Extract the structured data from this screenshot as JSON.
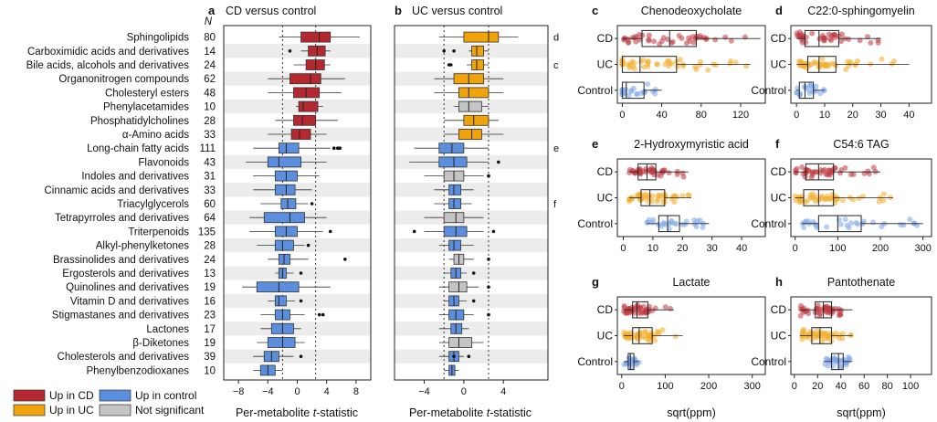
{
  "chart_data": {
    "type": "boxplot",
    "n_header": "N",
    "categories": [
      {
        "name": "Sphingolipids",
        "n": 80
      },
      {
        "name": "Carboximidic acids and derivatives",
        "n": 14
      },
      {
        "name": "Bile acids, alcohols and derivatives",
        "n": 24
      },
      {
        "name": "Organonitrogen compounds",
        "n": 62
      },
      {
        "name": "Cholesteryl esters",
        "n": 48
      },
      {
        "name": "Phenylacetamides",
        "n": 10
      },
      {
        "name": "Phosphatidylcholines",
        "n": 28
      },
      {
        "name": "α-Amino acids",
        "n": 33
      },
      {
        "name": "Long-chain fatty acids",
        "n": 111
      },
      {
        "name": "Flavonoids",
        "n": 43
      },
      {
        "name": "Indoles and derivatives",
        "n": 31
      },
      {
        "name": "Cinnamic acids and derivatives",
        "n": 33
      },
      {
        "name": "Triacylglycerols",
        "n": 60
      },
      {
        "name": "Tetrapyrroles and derivatives",
        "n": 64
      },
      {
        "name": "Triterpenoids",
        "n": 135
      },
      {
        "name": "Alkyl-phenylketones",
        "n": 28
      },
      {
        "name": "Brassinolides and derivatives",
        "n": 24
      },
      {
        "name": "Ergosterols and derivatives",
        "n": 13
      },
      {
        "name": "Quinolines and derivatives",
        "n": 19
      },
      {
        "name": "Vitamin D and derivatives",
        "n": 16
      },
      {
        "name": "Stigmastanes and derivatives",
        "n": 23
      },
      {
        "name": "Lactones",
        "n": 17
      },
      {
        "name": "β-Diketones",
        "n": 19
      },
      {
        "name": "Cholesterols and derivatives",
        "n": 39
      },
      {
        "name": "Phenylbenzodioxanes",
        "n": 10
      }
    ],
    "legend": [
      {
        "label": "Up in CD",
        "color": "#b5282f"
      },
      {
        "label": "Up in control",
        "color": "#5b8fde"
      },
      {
        "label": "Up in UC",
        "color": "#f0a30a"
      },
      {
        "label": "Not significant",
        "color": "#c4c4c4"
      }
    ],
    "colors": {
      "CD": "#b5282f",
      "UC": "#f0a30a",
      "control": "#5b8fde",
      "ns": "#c4c4c4",
      "CD_pts": "#c0393f",
      "UC_pts": "#f2ad2b",
      "ctrl_pts": "#7ba6ea"
    },
    "panel_a": {
      "label": "a",
      "title": "CD versus control",
      "xlabel_prefix": "Per-metabolite ",
      "xlabel_italic": "t",
      "xlabel_suffix": "-statistic",
      "xlim": [
        -10,
        10
      ],
      "xticks": [
        -8,
        -4,
        0,
        4,
        8
      ],
      "vlines": [
        -2,
        2.5
      ],
      "boxes": [
        {
          "q1": 0.5,
          "med": 3.0,
          "q3": 4.5,
          "lo": -2.5,
          "hi": 8.5,
          "cls": "CD",
          "out": []
        },
        {
          "q1": 1.5,
          "med": 2.7,
          "q3": 3.8,
          "lo": 0.5,
          "hi": 4.5,
          "cls": "CD",
          "out": [
            -1.0
          ]
        },
        {
          "q1": 1.2,
          "med": 2.5,
          "q3": 3.7,
          "lo": -0.5,
          "hi": 4.5,
          "cls": "CD",
          "out": []
        },
        {
          "q1": -1.0,
          "med": 1.8,
          "q3": 3.2,
          "lo": -4.0,
          "hi": 6.5,
          "cls": "CD",
          "out": []
        },
        {
          "q1": -0.5,
          "med": 1.2,
          "q3": 3.0,
          "lo": -4.0,
          "hi": 6.0,
          "cls": "CD",
          "out": []
        },
        {
          "q1": 0.2,
          "med": 0.8,
          "q3": 2.8,
          "lo": -0.2,
          "hi": 3.5,
          "cls": "CD",
          "out": []
        },
        {
          "q1": -0.5,
          "med": 0.7,
          "q3": 2.5,
          "lo": -3.0,
          "hi": 5.5,
          "cls": "CD",
          "out": []
        },
        {
          "q1": -0.8,
          "med": 0.3,
          "q3": 1.8,
          "lo": -4.0,
          "hi": 4.0,
          "cls": "CD",
          "out": []
        },
        {
          "q1": -2.5,
          "med": -1.5,
          "q3": 0.2,
          "lo": -6.0,
          "hi": 4.5,
          "cls": "control",
          "out": [
            5.0,
            5.5,
            5.8
          ]
        },
        {
          "q1": -4.0,
          "med": -2.5,
          "q3": 0.5,
          "lo": -7.0,
          "hi": 4.0,
          "cls": "control",
          "out": []
        },
        {
          "q1": -3.0,
          "med": -1.5,
          "q3": 0.0,
          "lo": -6.0,
          "hi": 3.0,
          "cls": "control",
          "out": []
        },
        {
          "q1": -3.0,
          "med": -1.5,
          "q3": -0.3,
          "lo": -6.0,
          "hi": 2.0,
          "cls": "control",
          "out": []
        },
        {
          "q1": -2.2,
          "med": -1.3,
          "q3": -0.2,
          "lo": -5.0,
          "hi": 1.5,
          "cls": "control",
          "out": [
            2.0
          ]
        },
        {
          "q1": -4.5,
          "med": -1.0,
          "q3": 1.0,
          "lo": -6.5,
          "hi": 4.0,
          "cls": "control",
          "out": []
        },
        {
          "q1": -3.0,
          "med": -1.5,
          "q3": 0.0,
          "lo": -6.5,
          "hi": 3.5,
          "cls": "control",
          "out": [
            4.5
          ]
        },
        {
          "q1": -3.0,
          "med": -2.0,
          "q3": -0.5,
          "lo": -5.5,
          "hi": 1.0,
          "cls": "control",
          "out": [
            1.5
          ]
        },
        {
          "q1": -2.5,
          "med": -1.8,
          "q3": -1.0,
          "lo": -4.0,
          "hi": 1.5,
          "cls": "control",
          "out": [
            6.5
          ]
        },
        {
          "q1": -2.5,
          "med": -2.0,
          "q3": -1.5,
          "lo": -3.0,
          "hi": -0.5,
          "cls": "control",
          "out": [
            0.5
          ]
        },
        {
          "q1": -5.5,
          "med": -2.5,
          "q3": 0.2,
          "lo": -7.5,
          "hi": 4.5,
          "cls": "control",
          "out": []
        },
        {
          "q1": -3.0,
          "med": -2.5,
          "q3": -1.5,
          "lo": -4.0,
          "hi": -0.3,
          "cls": "control",
          "out": [
            0.5
          ]
        },
        {
          "q1": -3.0,
          "med": -2.0,
          "q3": -1.0,
          "lo": -5.0,
          "hi": 1.0,
          "cls": "control",
          "out": [
            3.0,
            3.5
          ]
        },
        {
          "q1": -3.5,
          "med": -2.0,
          "q3": -0.5,
          "lo": -5.0,
          "hi": 0.5,
          "cls": "control",
          "out": []
        },
        {
          "q1": -4.0,
          "med": -2.0,
          "q3": -0.3,
          "lo": -5.5,
          "hi": 1.0,
          "cls": "control",
          "out": []
        },
        {
          "q1": -4.5,
          "med": -3.5,
          "q3": -2.5,
          "lo": -6.0,
          "hi": -0.5,
          "cls": "control",
          "out": [
            0.5
          ]
        },
        {
          "q1": -5.0,
          "med": -4.0,
          "q3": -3.0,
          "lo": -6.0,
          "hi": -2.0,
          "cls": "control",
          "out": []
        }
      ]
    },
    "panel_b": {
      "label": "b",
      "title": "UC versus control",
      "xlabel_prefix": "Per-metabolite ",
      "xlabel_italic": "t",
      "xlabel_suffix": "-statistic",
      "xlim": [
        -7,
        8.5
      ],
      "xticks": [
        -4,
        0,
        4
      ],
      "vlines": [
        -2,
        2.5
      ],
      "side_labels": [
        {
          "row": 0,
          "text": "d"
        },
        {
          "row": 2,
          "text": "c"
        },
        {
          "row": 8,
          "text": "e"
        },
        {
          "row": 12,
          "text": "f"
        }
      ],
      "boxes": [
        {
          "q1": 0.0,
          "med": 2.5,
          "q3": 3.5,
          "lo": -2.5,
          "hi": 5.5,
          "cls": "UC",
          "out": []
        },
        {
          "q1": 0.8,
          "med": 1.3,
          "q3": 2.0,
          "lo": 0.5,
          "hi": 2.5,
          "cls": "UC",
          "out": [
            -2.0,
            -1.0
          ]
        },
        {
          "q1": 0.8,
          "med": 1.3,
          "q3": 2.0,
          "lo": 0.3,
          "hi": 2.5,
          "cls": "UC",
          "out": [
            -1.5,
            -1.3
          ]
        },
        {
          "q1": -1.0,
          "med": 0.5,
          "q3": 2.0,
          "lo": -3.0,
          "hi": 4.0,
          "cls": "UC",
          "out": []
        },
        {
          "q1": -0.5,
          "med": 0.5,
          "q3": 2.5,
          "lo": -3.0,
          "hi": 4.0,
          "cls": "UC",
          "out": []
        },
        {
          "q1": -0.5,
          "med": 0.5,
          "q3": 1.8,
          "lo": -1.0,
          "hi": 2.5,
          "cls": "ns",
          "out": []
        },
        {
          "q1": 0.0,
          "med": 1.0,
          "q3": 2.5,
          "lo": -2.0,
          "hi": 3.5,
          "cls": "UC",
          "out": []
        },
        {
          "q1": -0.5,
          "med": 0.8,
          "q3": 1.8,
          "lo": -2.0,
          "hi": 4.0,
          "cls": "UC",
          "out": []
        },
        {
          "q1": -2.5,
          "med": -1.2,
          "q3": 0.0,
          "lo": -5.0,
          "hi": 2.5,
          "cls": "control",
          "out": []
        },
        {
          "q1": -2.5,
          "med": -1.0,
          "q3": 0.3,
          "lo": -5.5,
          "hi": 2.5,
          "cls": "control",
          "out": [
            3.5
          ]
        },
        {
          "q1": -2.0,
          "med": -1.0,
          "q3": 0.0,
          "lo": -4.0,
          "hi": 2.0,
          "cls": "ns",
          "out": [
            2.5
          ]
        },
        {
          "q1": -1.5,
          "med": -1.0,
          "q3": -0.3,
          "lo": -3.0,
          "hi": 1.0,
          "cls": "control",
          "out": []
        },
        {
          "q1": -1.5,
          "med": -1.0,
          "q3": -0.3,
          "lo": -3.0,
          "hi": 0.8,
          "cls": "control",
          "out": []
        },
        {
          "q1": -2.0,
          "med": -0.8,
          "q3": 0.0,
          "lo": -4.0,
          "hi": 2.0,
          "cls": "ns",
          "out": []
        },
        {
          "q1": -2.0,
          "med": -0.8,
          "q3": 0.3,
          "lo": -4.0,
          "hi": 2.0,
          "cls": "control",
          "out": [
            -5.0,
            3.0
          ]
        },
        {
          "q1": -1.5,
          "med": -1.0,
          "q3": -0.3,
          "lo": -2.5,
          "hi": 1.0,
          "cls": "control",
          "out": []
        },
        {
          "q1": -1.0,
          "med": -0.5,
          "q3": 0.0,
          "lo": -1.5,
          "hi": 1.0,
          "cls": "ns",
          "out": [
            2.5
          ]
        },
        {
          "q1": -1.3,
          "med": -0.8,
          "q3": -0.3,
          "lo": -2.0,
          "hi": 0.3,
          "cls": "control",
          "out": [
            1.0
          ]
        },
        {
          "q1": -1.5,
          "med": -0.5,
          "q3": 0.3,
          "lo": -2.5,
          "hi": 1.5,
          "cls": "ns",
          "out": [
            2.5
          ]
        },
        {
          "q1": -1.5,
          "med": -1.0,
          "q3": -0.5,
          "lo": -2.0,
          "hi": 0.3,
          "cls": "control",
          "out": [
            1.0
          ]
        },
        {
          "q1": -1.5,
          "med": -0.8,
          "q3": 0.0,
          "lo": -2.5,
          "hi": 1.0,
          "cls": "control",
          "out": [
            2.5
          ]
        },
        {
          "q1": -1.3,
          "med": -0.8,
          "q3": -0.2,
          "lo": -2.5,
          "hi": 0.5,
          "cls": "control",
          "out": []
        },
        {
          "q1": -1.5,
          "med": -0.5,
          "q3": 0.8,
          "lo": -2.5,
          "hi": 2.0,
          "cls": "ns",
          "out": []
        },
        {
          "q1": -1.5,
          "med": -1.0,
          "q3": -0.5,
          "lo": -2.5,
          "hi": 0.0,
          "cls": "control",
          "out": [
            -1.0,
            0.5
          ]
        },
        {
          "q1": -1.5,
          "med": -1.2,
          "q3": -0.9,
          "lo": -2.0,
          "hi": -0.5,
          "cls": "control",
          "out": []
        }
      ]
    },
    "scatter_panels": [
      {
        "label": "c",
        "title": "Chenodeoxycholate",
        "xlabel": "",
        "xlim": [
          -5,
          145
        ],
        "xticks": [
          0,
          40,
          80,
          120
        ],
        "groups": [
          "CD",
          "UC",
          "Control"
        ],
        "boxes": [
          {
            "q1": 20,
            "med": 48,
            "q3": 75,
            "lo": 0,
            "hi": 140
          },
          {
            "q1": 0,
            "med": 18,
            "q3": 55,
            "lo": 0,
            "hi": 130
          },
          {
            "q1": 0,
            "med": 4,
            "q3": 22,
            "lo": 0,
            "hi": 40
          }
        ],
        "pts": [
          42,
          48,
          22
        ]
      },
      {
        "label": "d",
        "title": "C22:0-sphingomyelin",
        "xlabel": "",
        "xlim": [
          -2,
          48
        ],
        "xticks": [
          0,
          10,
          20,
          30,
          40
        ],
        "groups": [
          "CD",
          "UC",
          "Control"
        ],
        "boxes": [
          {
            "q1": 3,
            "med": 8,
            "q3": 15,
            "lo": 0,
            "hi": 30
          },
          {
            "q1": 4,
            "med": 8,
            "q3": 14,
            "lo": 0,
            "hi": 40
          },
          {
            "q1": 1,
            "med": 3,
            "q3": 6,
            "lo": 0,
            "hi": 10
          }
        ],
        "pts": [
          40,
          48,
          20
        ]
      },
      {
        "label": "e",
        "title": "2-Hydroxymyristic acid",
        "xlabel": "",
        "xlim": [
          -2,
          48
        ],
        "xticks": [
          0,
          10,
          20,
          30,
          40
        ],
        "groups": [
          "CD",
          "UC",
          "Control"
        ],
        "boxes": [
          {
            "q1": 5,
            "med": 8,
            "q3": 11,
            "lo": 2,
            "hi": 22
          },
          {
            "q1": 6,
            "med": 9,
            "q3": 14,
            "lo": 2,
            "hi": 23
          },
          {
            "q1": 12,
            "med": 15,
            "q3": 19,
            "lo": 8,
            "hi": 29
          }
        ],
        "pts": [
          40,
          48,
          26
        ]
      },
      {
        "label": "f",
        "title": "C54:6 TAG",
        "xlabel": "",
        "xlim": [
          -10,
          320
        ],
        "xticks": [
          0,
          100,
          200,
          300
        ],
        "groups": [
          "CD",
          "UC",
          "Control"
        ],
        "boxes": [
          {
            "q1": 25,
            "med": 55,
            "q3": 90,
            "lo": 0,
            "hi": 200
          },
          {
            "q1": 20,
            "med": 55,
            "q3": 90,
            "lo": 0,
            "hi": 230
          },
          {
            "q1": 55,
            "med": 100,
            "q3": 155,
            "lo": 15,
            "hi": 300
          }
        ],
        "pts": [
          44,
          48,
          30
        ]
      },
      {
        "label": "g",
        "title": "Lactate",
        "xlabel": "sqrt(ppm)",
        "xlim": [
          -10,
          330
        ],
        "xticks": [
          0,
          100,
          200,
          300
        ],
        "groups": [
          "CD",
          "UC",
          "Control"
        ],
        "boxes": [
          {
            "q1": 25,
            "med": 35,
            "q3": 60,
            "lo": 5,
            "hi": 120
          },
          {
            "q1": 25,
            "med": 40,
            "q3": 70,
            "lo": 5,
            "hi": 140
          },
          {
            "q1": 15,
            "med": 20,
            "q3": 28,
            "lo": 5,
            "hi": 40
          }
        ],
        "pts": [
          44,
          48,
          26
        ]
      },
      {
        "label": "h",
        "title": "Pantothenate",
        "xlabel": "sqrt(ppm)",
        "xlim": [
          -3,
          118
        ],
        "xticks": [
          0,
          20,
          40,
          60,
          80,
          100
        ],
        "groups": [
          "CD",
          "UC",
          "Control"
        ],
        "boxes": [
          {
            "q1": 18,
            "med": 25,
            "q3": 32,
            "lo": 5,
            "hi": 50
          },
          {
            "q1": 15,
            "med": 22,
            "q3": 32,
            "lo": 5,
            "hi": 50
          },
          {
            "q1": 32,
            "med": 38,
            "q3": 42,
            "lo": 25,
            "hi": 50
          }
        ],
        "pts": [
          44,
          48,
          30
        ]
      }
    ]
  }
}
